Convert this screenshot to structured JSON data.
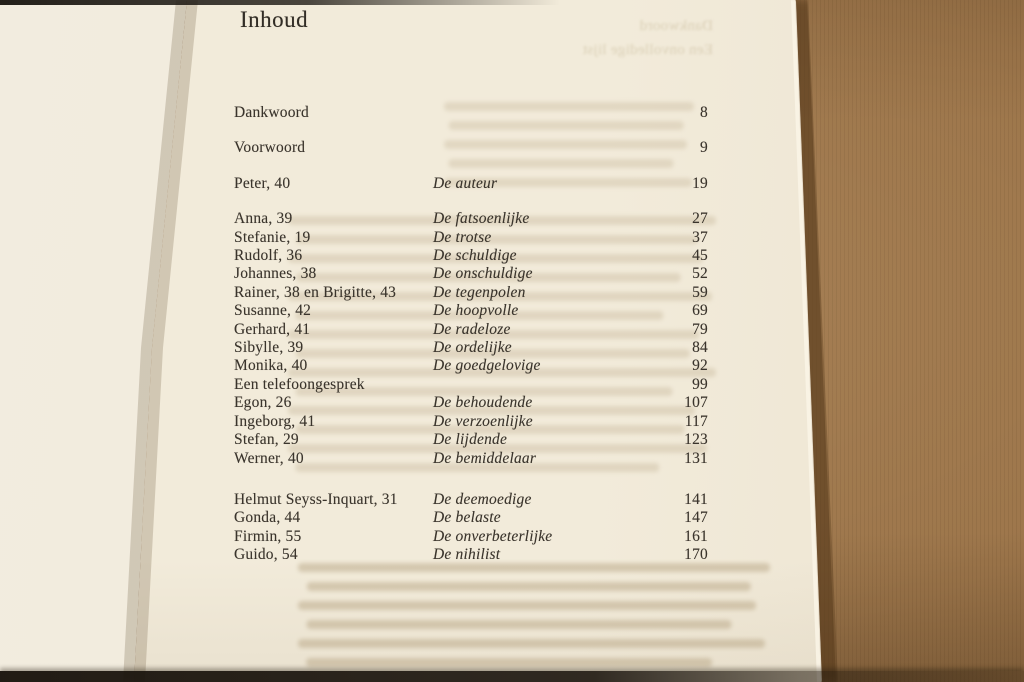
{
  "book_page": {
    "title": "Inhoud",
    "entries": [
      {
        "name": "Dankwoord",
        "desc": "",
        "page": "8",
        "space": "none"
      },
      {
        "name": "Voorwoord",
        "desc": "",
        "page": "9",
        "space": "md"
      },
      {
        "name": "Peter, 40",
        "desc": "De auteur",
        "page": "19",
        "space": "md"
      },
      {
        "name": "Anna, 39",
        "desc": "De fatsoenlijke",
        "page": "27",
        "space": "md"
      },
      {
        "name": "Stefanie, 19",
        "desc": "De trotse",
        "page": "37",
        "space": "none"
      },
      {
        "name": "Rudolf, 36",
        "desc": "De schuldige",
        "page": "45",
        "space": "none"
      },
      {
        "name": "Johannes, 38",
        "desc": "De onschuldige",
        "page": "52",
        "space": "none"
      },
      {
        "name": "Rainer, 38 en Brigitte, 43",
        "desc": "De tegenpolen",
        "page": "59",
        "space": "none"
      },
      {
        "name": "Susanne, 42",
        "desc": "De hoopvolle",
        "page": "69",
        "space": "none"
      },
      {
        "name": "Gerhard, 41",
        "desc": "De radeloze",
        "page": "79",
        "space": "none"
      },
      {
        "name": "Sibylle, 39",
        "desc": "De ordelijke",
        "page": "84",
        "space": "none"
      },
      {
        "name": "Monika, 40",
        "desc": "De goedgelovige",
        "page": "92",
        "space": "none"
      },
      {
        "name": "Een telefoongesprek",
        "desc": "",
        "page": "99",
        "space": "none"
      },
      {
        "name": "Egon, 26",
        "desc": "De behoudende",
        "page": "107",
        "space": "none"
      },
      {
        "name": "Ingeborg, 41",
        "desc": "De verzoenlijke",
        "page": "117",
        "space": "none"
      },
      {
        "name": "Stefan, 29",
        "desc": "De lijdende",
        "page": "123",
        "space": "none"
      },
      {
        "name": "Werner, 40",
        "desc": "De bemiddelaar",
        "page": "131",
        "space": "none"
      },
      {
        "name": "Helmut Seyss-Inquart, 31",
        "desc": "De deemoedige",
        "page": "141",
        "space": "lg"
      },
      {
        "name": "Gonda, 44",
        "desc": "De belaste",
        "page": "147",
        "space": "none"
      },
      {
        "name": "Firmin, 55",
        "desc": "De onverbeterlijke",
        "page": "161",
        "space": "none"
      },
      {
        "name": "Guido, 54",
        "desc": "De nihilist",
        "page": "170",
        "space": "none"
      }
    ],
    "show_through": {
      "line1": "Dankwoord",
      "line2": "Een onvolledige lijst"
    }
  },
  "colors": {
    "paper": "#f2ebda",
    "facing_paper": "#f1ebdd",
    "cardboard": "#9d764b",
    "ink": "#3a342c"
  }
}
